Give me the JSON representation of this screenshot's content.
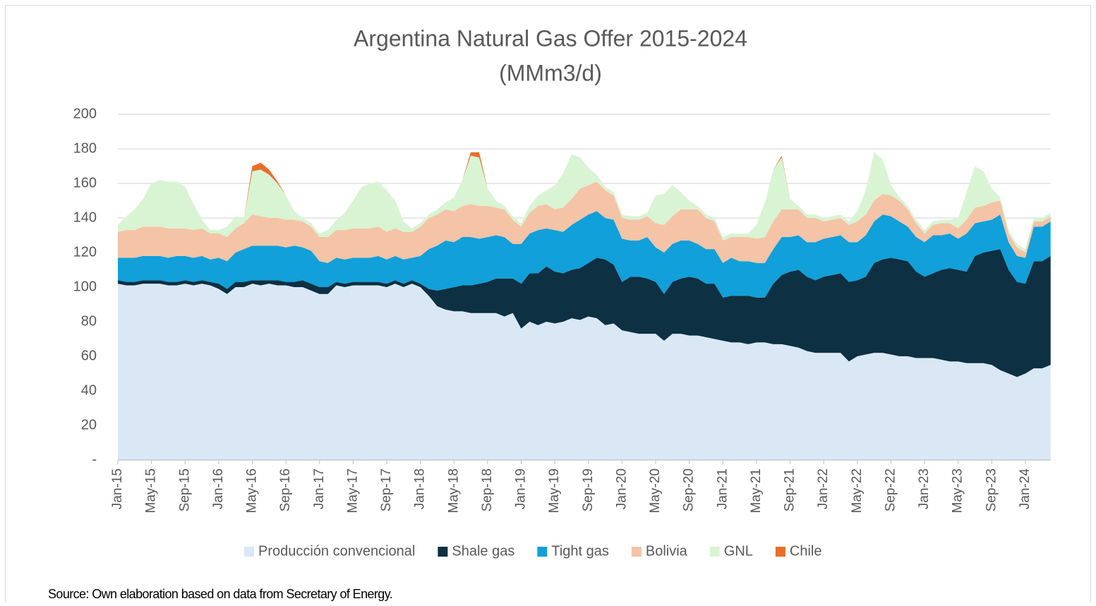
{
  "chart_data": {
    "type": "stacked_area",
    "title": "Argentina Natural Gas Offer 2015-2024",
    "subtitle": "(MMm3/d)",
    "source": "Source: Own elaboration based on data from Secretary of Energy.",
    "categories": [
      "Jan-15",
      null,
      null,
      null,
      "May-15",
      null,
      null,
      null,
      "Sep-15",
      null,
      null,
      null,
      "Jan-16",
      null,
      null,
      null,
      "May-16",
      null,
      null,
      null,
      "Sep-16",
      null,
      null,
      null,
      "Jan-17",
      null,
      null,
      null,
      "May-17",
      null,
      null,
      null,
      "Sep-17",
      null,
      null,
      null,
      "Jan-18",
      null,
      null,
      null,
      "May-18",
      null,
      null,
      null,
      "Sep-18",
      null,
      null,
      null,
      "Jan-19",
      null,
      null,
      null,
      "May-19",
      null,
      null,
      null,
      "Sep-19",
      null,
      null,
      null,
      "Jan-20",
      null,
      null,
      null,
      "May-20",
      null,
      null,
      null,
      "Sep-20",
      null,
      null,
      null,
      "Jan-21",
      null,
      null,
      null,
      "May-21",
      null,
      null,
      null,
      "Sep-21",
      null,
      null,
      null,
      "Jan-22",
      null,
      null,
      null,
      "May-22",
      null,
      null,
      null,
      "Sep-22",
      null,
      null,
      null,
      "Jan-23",
      null,
      null,
      null,
      "May-23",
      null,
      null,
      null,
      "Sep-23",
      null,
      null,
      null,
      "Jan-24",
      null,
      null,
      null
    ],
    "ylim": [
      0,
      200
    ],
    "yticks": [
      {
        "value": 0,
        "label": "-"
      },
      20,
      40,
      60,
      80,
      100,
      120,
      140,
      160,
      180,
      200
    ],
    "grid": true,
    "legend": "bottom",
    "series": [
      {
        "name": "Producción convencional",
        "color": "#dae8f6",
        "values": [
          102,
          101,
          101,
          102,
          102,
          102,
          101,
          101,
          102,
          101,
          102,
          101,
          99,
          96,
          100,
          100,
          102,
          101,
          102,
          101,
          101,
          100,
          100,
          98,
          96,
          96,
          101,
          100,
          101,
          101,
          101,
          101,
          100,
          102,
          100,
          102,
          100,
          95,
          89,
          87,
          86,
          86,
          85,
          85,
          85,
          85,
          83,
          85,
          76,
          80,
          78,
          80,
          79,
          80,
          82,
          81,
          83,
          82,
          78,
          79,
          75,
          74,
          73,
          73,
          73,
          69,
          73,
          73,
          72,
          72,
          71,
          70,
          69,
          68,
          68,
          67,
          68,
          68,
          67,
          67,
          66,
          65,
          63,
          62,
          62,
          62,
          62,
          57,
          60,
          61,
          62,
          62,
          61,
          60,
          60,
          59,
          59,
          59,
          58,
          57,
          57,
          56,
          56,
          56,
          55,
          52,
          50,
          48,
          50,
          53,
          53,
          55
        ]
      },
      {
        "name": "Shale gas",
        "color": "#0d3042",
        "values": [
          2,
          2,
          2,
          2,
          2,
          2,
          2,
          2,
          2,
          2,
          2,
          2,
          3,
          3,
          3,
          3,
          2,
          3,
          2,
          3,
          2,
          3,
          4,
          4,
          4,
          4,
          2,
          2,
          2,
          2,
          2,
          2,
          2,
          2,
          2,
          2,
          2,
          4,
          9,
          12,
          14,
          15,
          16,
          17,
          18,
          20,
          22,
          20,
          26,
          28,
          30,
          32,
          30,
          28,
          28,
          30,
          31,
          35,
          38,
          34,
          28,
          32,
          33,
          32,
          30,
          27,
          30,
          32,
          34,
          33,
          31,
          32,
          25,
          27,
          27,
          28,
          26,
          26,
          35,
          40,
          43,
          45,
          43,
          42,
          44,
          45,
          46,
          46,
          44,
          45,
          52,
          54,
          56,
          56,
          55,
          50,
          47,
          49,
          52,
          54,
          53,
          53,
          62,
          64,
          66,
          70,
          60,
          55,
          52,
          62,
          62,
          63
        ]
      },
      {
        "name": "Tight gas",
        "color": "#11a0d9",
        "values": [
          13,
          14,
          14,
          14,
          14,
          14,
          14,
          15,
          14,
          14,
          14,
          13,
          15,
          16,
          17,
          19,
          20,
          20,
          20,
          20,
          20,
          21,
          19,
          19,
          15,
          14,
          14,
          14,
          14,
          14,
          14,
          15,
          14,
          14,
          14,
          13,
          16,
          23,
          26,
          28,
          26,
          28,
          28,
          26,
          26,
          25,
          24,
          20,
          23,
          23,
          25,
          22,
          24,
          24,
          26,
          28,
          28,
          27,
          24,
          26,
          25,
          21,
          21,
          24,
          20,
          24,
          22,
          22,
          21,
          20,
          20,
          20,
          20,
          22,
          20,
          20,
          20,
          20,
          20,
          22,
          20,
          20,
          20,
          22,
          22,
          22,
          22,
          23,
          22,
          24,
          24,
          26,
          24,
          22,
          20,
          20,
          20,
          22,
          20,
          20,
          18,
          22,
          19,
          18,
          18,
          20,
          16,
          15,
          15,
          20,
          20,
          20
        ]
      },
      {
        "name": "Bolivia",
        "color": "#f5c3a6",
        "values": [
          15,
          16,
          16,
          17,
          17,
          17,
          17,
          16,
          16,
          16,
          16,
          15,
          14,
          14,
          14,
          15,
          18,
          17,
          16,
          16,
          16,
          15,
          15,
          14,
          14,
          15,
          16,
          17,
          17,
          17,
          17,
          17,
          16,
          16,
          16,
          15,
          17,
          18,
          18,
          18,
          18,
          18,
          19,
          19,
          18,
          16,
          16,
          14,
          10,
          12,
          14,
          14,
          12,
          14,
          15,
          18,
          17,
          17,
          16,
          14,
          12,
          12,
          12,
          12,
          14,
          16,
          16,
          18,
          18,
          20,
          18,
          16,
          13,
          12,
          14,
          14,
          14,
          15,
          16,
          16,
          16,
          15,
          14,
          14,
          10,
          10,
          10,
          10,
          12,
          12,
          12,
          12,
          12,
          12,
          10,
          8,
          5,
          6,
          7,
          6,
          6,
          8,
          9,
          9,
          10,
          8,
          5,
          5,
          3,
          3,
          3,
          3
        ]
      },
      {
        "name": "GNL",
        "color": "#d8f4d3",
        "values": [
          4,
          8,
          12,
          16,
          25,
          27,
          27,
          27,
          24,
          15,
          5,
          2,
          2,
          6,
          7,
          3,
          25,
          27,
          25,
          20,
          14,
          5,
          2,
          2,
          2,
          4,
          6,
          10,
          16,
          24,
          26,
          26,
          24,
          16,
          6,
          2,
          2,
          2,
          3,
          4,
          8,
          15,
          28,
          28,
          10,
          4,
          2,
          2,
          2,
          4,
          6,
          8,
          14,
          20,
          26,
          18,
          10,
          4,
          2,
          2,
          2,
          2,
          2,
          2,
          16,
          18,
          18,
          10,
          5,
          2,
          2,
          2,
          2,
          2,
          2,
          2,
          8,
          20,
          30,
          30,
          6,
          2,
          2,
          2,
          2,
          2,
          2,
          2,
          6,
          14,
          28,
          20,
          6,
          2,
          2,
          2,
          2,
          2,
          2,
          2,
          6,
          16,
          24,
          20,
          8,
          2,
          2,
          2,
          2,
          2,
          2,
          2
        ]
      },
      {
        "name": "Chile",
        "color": "#e86f2a",
        "values": [
          0,
          0,
          0,
          0,
          0,
          0,
          0,
          0,
          0,
          0,
          0,
          0,
          0,
          0,
          0,
          0,
          3,
          4,
          3,
          1,
          0,
          0,
          0,
          0,
          0,
          0,
          0,
          0,
          0,
          0,
          0,
          0,
          0,
          0,
          0,
          0,
          0,
          0,
          0,
          0,
          0,
          0,
          2,
          3,
          0,
          0,
          0,
          0,
          0,
          0,
          0,
          0,
          0,
          0,
          0,
          0,
          0,
          0,
          0,
          0,
          0,
          0,
          0,
          0,
          0,
          0,
          0,
          0,
          0,
          0,
          0,
          0,
          0,
          0,
          0,
          0,
          0,
          0,
          0,
          1,
          0,
          0,
          0,
          0,
          0,
          0,
          0,
          0,
          0,
          0,
          0,
          0,
          0,
          0,
          0,
          0,
          0,
          0,
          0,
          0,
          0,
          0,
          0,
          0,
          0,
          0,
          0,
          0,
          0,
          0,
          0,
          0
        ]
      }
    ]
  }
}
